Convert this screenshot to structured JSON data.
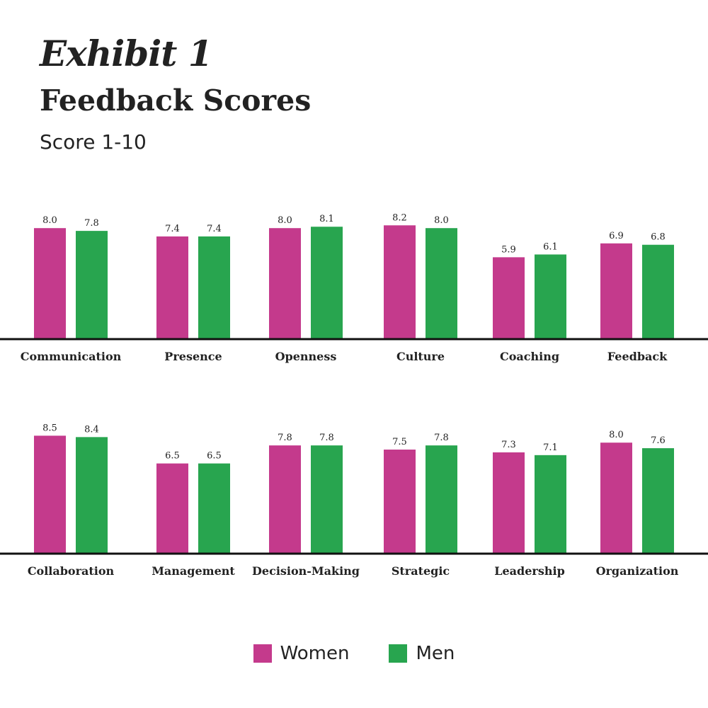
{
  "header": {
    "exhibit": "Exhibit 1",
    "title": "Feedback Scores",
    "subtitle": "Score 1-10"
  },
  "colors": {
    "women": "#c43a8c",
    "men": "#28a54f",
    "axis": "#111111"
  },
  "chart_data": {
    "type": "bar",
    "title": "Feedback Scores",
    "subtitle": "Score 1-10",
    "ylim": [
      0,
      10
    ],
    "grid": false,
    "legend_position": "bottom-center",
    "series": [
      {
        "name": "Women",
        "color": "#c43a8c"
      },
      {
        "name": "Men",
        "color": "#28a54f"
      }
    ],
    "panels": [
      {
        "categories": [
          "Communication",
          "Presence",
          "Openness",
          "Culture",
          "Coaching",
          "Feedback"
        ],
        "women": [
          8.0,
          7.4,
          8.0,
          8.2,
          5.9,
          6.9
        ],
        "men": [
          7.8,
          7.4,
          8.1,
          8.0,
          6.1,
          6.8
        ]
      },
      {
        "categories": [
          "Collaboration",
          "Management",
          "Decision-Making",
          "Strategic",
          "Leadership",
          "Organization"
        ],
        "women": [
          8.5,
          6.5,
          7.8,
          7.5,
          7.3,
          8.0
        ],
        "men": [
          8.4,
          6.5,
          7.8,
          7.8,
          7.1,
          7.6
        ]
      }
    ]
  }
}
